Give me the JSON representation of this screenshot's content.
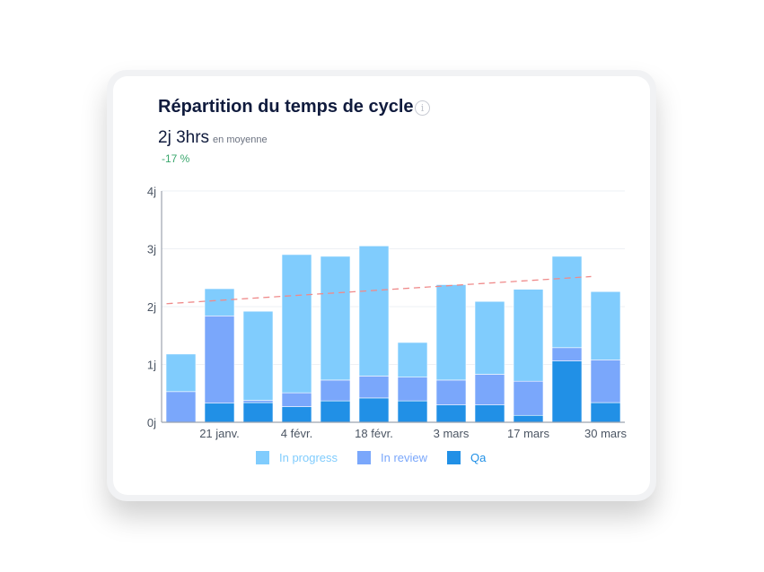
{
  "card": {
    "title": "Répartition du temps de cycle",
    "info_icon": "info-circle-icon",
    "average_value": "2j 3hrs",
    "average_label": "en moyenne",
    "delta": "-17 %",
    "delta_color": "#3aa76d"
  },
  "chart_data": {
    "type": "bar",
    "stacked": true,
    "categories": [
      "",
      "21 janv.",
      "",
      "4 févr.",
      "",
      "18 févr.",
      "",
      "3 mars",
      "",
      "17 mars",
      "",
      "30 mars"
    ],
    "series": [
      {
        "name": "Qa",
        "color": "#2190e6",
        "values": [
          0,
          0.33,
          0.34,
          0.27,
          0.37,
          0.42,
          0.37,
          0.3,
          0.3,
          0.12,
          1.06,
          0.34
        ]
      },
      {
        "name": "In review",
        "color": "#7aa7fb",
        "values": [
          0.53,
          1.51,
          0.04,
          0.24,
          0.36,
          0.38,
          0.41,
          0.43,
          0.53,
          0.59,
          0.23,
          0.74
        ]
      },
      {
        "name": "In progress",
        "color": "#80ccfd",
        "values": [
          0.65,
          0.47,
          1.54,
          2.39,
          2.14,
          2.25,
          0.6,
          1.65,
          1.26,
          1.59,
          1.58,
          1.18
        ]
      }
    ],
    "trendline": {
      "start": 2.05,
      "end": 2.52,
      "color": "#ef8a8a",
      "style": "dashed"
    },
    "yticks": [
      "0j",
      "1j",
      "2j",
      "3j",
      "4j"
    ],
    "ylim": [
      0,
      4
    ],
    "grid": true,
    "legend_position": "bottom",
    "legend": [
      "In progress",
      "In review",
      "Qa"
    ]
  }
}
